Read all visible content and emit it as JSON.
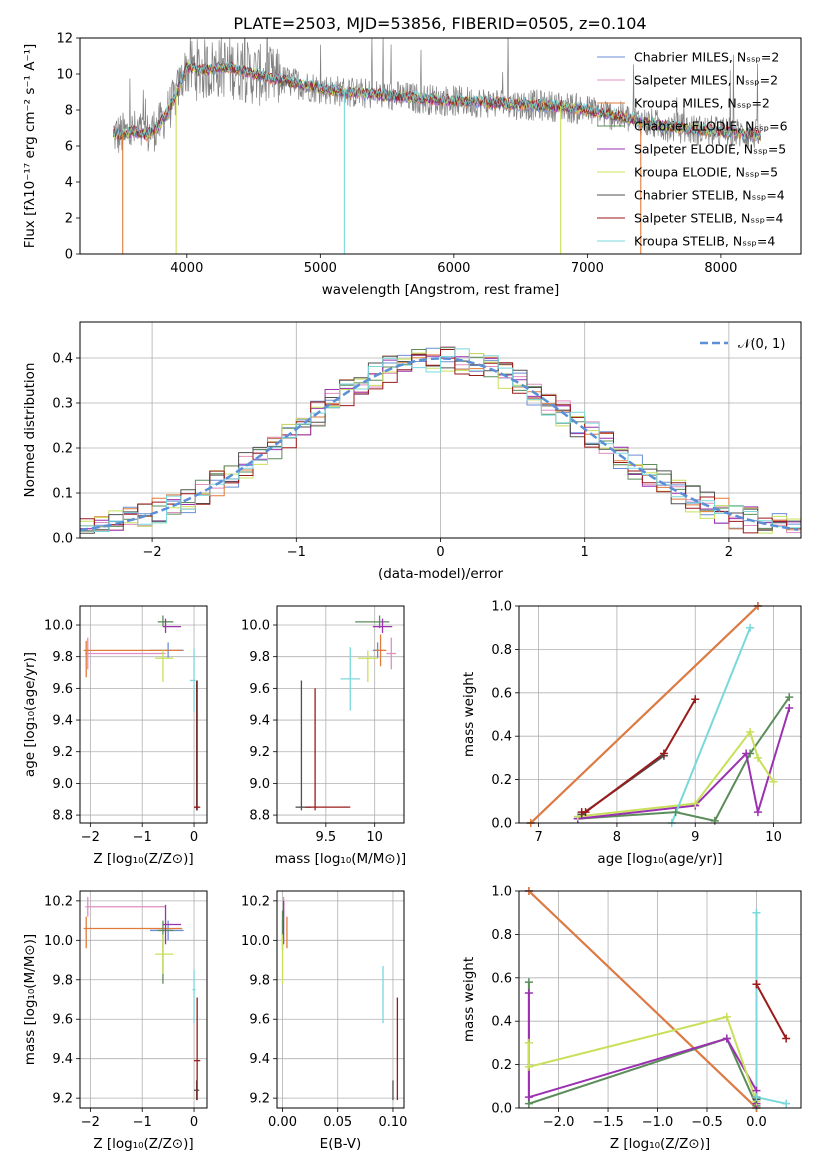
{
  "title": "PLATE=2503, MJD=53856, FIBERID=0505, z=0.104",
  "colors": {
    "chabrier_miles": "#6a8fd6",
    "salpeter_miles": "#e08fc0",
    "kroupa_miles": "#e07b39",
    "chabrier_elodie": "#5b8c5a",
    "salpeter_elodie": "#9b30b0",
    "kroupa_elodie": "#c8e05a",
    "chabrier_stelib": "#505050",
    "salpeter_stelib": "#9b1a1a",
    "kroupa_stelib": "#78d8dc",
    "gaussian": "#5b8fd6",
    "grid": "#b0b0b0"
  },
  "chart_data": [
    {
      "type": "line",
      "panel": "spectrum",
      "xlabel": "wavelength [Angstrom, rest frame]",
      "ylabel": "Flux [fλ10⁻¹⁷ erg cm⁻² s⁻¹ A⁻¹]",
      "xlim": [
        3200,
        8600
      ],
      "ylim": [
        0,
        12
      ],
      "xticks": [
        4000,
        5000,
        6000,
        7000,
        8000
      ],
      "yticks": [
        0,
        2,
        4,
        6,
        8,
        10,
        12
      ],
      "grid": false,
      "legend": "top-right",
      "legend_entries": [
        {
          "label": "Chabrier MILES, Nₛₛₚ=2",
          "color": "chabrier_miles"
        },
        {
          "label": "Salpeter MILES, Nₛₛₚ=2",
          "color": "salpeter_miles"
        },
        {
          "label": "Kroupa MILES, Nₛₛₚ=2",
          "color": "kroupa_miles"
        },
        {
          "label": "Chabrier ELODIE, Nₛₛₚ=6",
          "color": "chabrier_elodie"
        },
        {
          "label": "Salpeter ELODIE, Nₛₛₚ=5",
          "color": "salpeter_elodie"
        },
        {
          "label": "Kroupa ELODIE, Nₛₛₚ=5",
          "color": "kroupa_elodie"
        },
        {
          "label": "Chabrier STELIB, Nₛₛₚ=4",
          "color": "chabrier_stelib"
        },
        {
          "label": "Salpeter STELIB, Nₛₛₚ=4",
          "color": "salpeter_stelib"
        },
        {
          "label": "Kroupa STELIB, Nₛₛₚ=4",
          "color": "kroupa_stelib"
        }
      ],
      "model_continuum": {
        "x": [
          3450,
          3500,
          3600,
          3700,
          3800,
          3900,
          4000,
          4100,
          4300,
          4500,
          4800,
          5000,
          5200,
          5500,
          5800,
          6000,
          6300,
          6500,
          6800,
          7000,
          7200,
          7500,
          7800,
          8000,
          8300
        ],
        "y": [
          6.7,
          6.6,
          6.8,
          6.6,
          7.2,
          8.5,
          10.4,
          10.2,
          10.4,
          10.0,
          9.5,
          9.2,
          9.0,
          8.8,
          8.6,
          8.5,
          8.4,
          8.3,
          8.2,
          8.0,
          7.7,
          7.2,
          6.9,
          6.8,
          6.6
        ]
      },
      "data_dropouts": [
        {
          "x": 3520,
          "color": "kroupa_miles"
        },
        {
          "x": 3920,
          "color": "kroupa_elodie"
        },
        {
          "x": 5180,
          "color": "kroupa_stelib"
        },
        {
          "x": 6800,
          "color": "kroupa_elodie"
        },
        {
          "x": 7400,
          "color": "kroupa_miles"
        }
      ]
    },
    {
      "type": "line",
      "panel": "residual-histogram",
      "xlabel": "(data-model)/error",
      "ylabel": "Normed distribution",
      "xlim": [
        -2.5,
        2.5
      ],
      "ylim": [
        0,
        0.48
      ],
      "xticks": [
        -2,
        -1,
        0,
        1,
        2
      ],
      "yticks": [
        0.0,
        0.1,
        0.2,
        0.3,
        0.4
      ],
      "grid": true,
      "legend": "top-right",
      "legend_label": "𝒩(0, 1)",
      "gaussian": {
        "mean": 0,
        "sigma": 1
      },
      "bin_width": 0.1,
      "series_colors": [
        "chabrier_miles",
        "salpeter_miles",
        "kroupa_miles",
        "chabrier_elodie",
        "salpeter_elodie",
        "kroupa_elodie",
        "chabrier_stelib",
        "salpeter_stelib",
        "kroupa_stelib"
      ]
    },
    {
      "type": "scatter",
      "panel": "age-vs-Z",
      "xlabel": "Z [log₁₀(Z/Z⊙)]",
      "ylabel": "age  [log₁₀(age/yr)]",
      "xlim": [
        -2.2,
        0.25
      ],
      "ylim": [
        8.75,
        10.12
      ],
      "xticks": [
        -2,
        -1,
        0
      ],
      "yticks": [
        8.8,
        9.0,
        9.2,
        9.4,
        9.6,
        9.8,
        10.0
      ],
      "grid": true,
      "points": [
        {
          "color": "chabrier_miles",
          "x": -0.5,
          "y": 9.84,
          "xerr": [
            0.35,
            0.3
          ],
          "yerr": [
            0.05,
            0.05
          ]
        },
        {
          "color": "salpeter_miles",
          "x": -2.05,
          "y": 9.82,
          "xerr": [
            0.05,
            1.5
          ],
          "yerr": [
            0.1,
            0.1
          ]
        },
        {
          "color": "kroupa_miles",
          "x": -2.08,
          "y": 9.84,
          "xerr": [
            0.05,
            1.85
          ],
          "yerr": [
            0.17,
            0.06
          ]
        },
        {
          "color": "chabrier_elodie",
          "x": -0.6,
          "y": 10.02,
          "xerr": [
            0.1,
            0.2
          ],
          "yerr": [
            0.03,
            0.04
          ]
        },
        {
          "color": "salpeter_elodie",
          "x": -0.55,
          "y": 9.99,
          "xerr": [
            0.05,
            0.3
          ],
          "yerr": [
            0.04,
            0.05
          ]
        },
        {
          "color": "kroupa_elodie",
          "x": -0.6,
          "y": 9.79,
          "xerr": [
            0.15,
            0.2
          ],
          "yerr": [
            0.15,
            0.05
          ]
        },
        {
          "color": "chabrier_stelib",
          "x": 0.05,
          "y": 8.85,
          "xerr": [
            0.05,
            0.05
          ],
          "yerr": [
            0.02,
            0.8
          ]
        },
        {
          "color": "salpeter_stelib",
          "x": 0.06,
          "y": 8.85,
          "xerr": [
            0.06,
            0.06
          ],
          "yerr": [
            0.02,
            0.8
          ]
        },
        {
          "color": "kroupa_stelib",
          "x": 0.0,
          "y": 9.65,
          "xerr": [
            0.08,
            0.03
          ],
          "yerr": [
            0.2,
            0.2
          ]
        }
      ]
    },
    {
      "type": "scatter",
      "panel": "age-vs-mass",
      "xlabel": "mass [log₁₀(M/M⊙)]",
      "ylabel": "",
      "xlim": [
        9.0,
        10.3
      ],
      "ylim": [
        8.75,
        10.12
      ],
      "xticks": [
        9.5,
        10.0
      ],
      "yticks": [
        8.8,
        9.0,
        9.2,
        9.4,
        9.6,
        9.8,
        10.0
      ],
      "grid": true,
      "points": [
        {
          "color": "chabrier_miles",
          "x": 10.03,
          "y": 9.84,
          "xerr": [
            0.05,
            0.05
          ],
          "yerr": [
            0.05,
            0.05
          ]
        },
        {
          "color": "salpeter_miles",
          "x": 10.17,
          "y": 9.82,
          "xerr": [
            0.05,
            0.05
          ],
          "yerr": [
            0.1,
            0.1
          ]
        },
        {
          "color": "kroupa_miles",
          "x": 10.06,
          "y": 9.84,
          "xerr": [
            0.06,
            0.06
          ],
          "yerr": [
            0.1,
            0.1
          ]
        },
        {
          "color": "chabrier_elodie",
          "x": 10.05,
          "y": 10.02,
          "xerr": [
            0.25,
            0.1
          ],
          "yerr": [
            0.04,
            0.04
          ]
        },
        {
          "color": "salpeter_elodie",
          "x": 10.08,
          "y": 9.99,
          "xerr": [
            0.1,
            0.1
          ],
          "yerr": [
            0.04,
            0.05
          ]
        },
        {
          "color": "kroupa_elodie",
          "x": 9.93,
          "y": 9.79,
          "xerr": [
            0.1,
            0.1
          ],
          "yerr": [
            0.15,
            0.05
          ]
        },
        {
          "color": "chabrier_stelib",
          "x": 9.25,
          "y": 8.85,
          "xerr": [
            0.06,
            0.1
          ],
          "yerr": [
            0.02,
            0.8
          ]
        },
        {
          "color": "salpeter_stelib",
          "x": 9.39,
          "y": 8.85,
          "xerr": [
            0.1,
            0.36
          ],
          "yerr": [
            0.02,
            0.75
          ]
        },
        {
          "color": "kroupa_stelib",
          "x": 9.75,
          "y": 9.66,
          "xerr": [
            0.1,
            0.1
          ],
          "yerr": [
            0.2,
            0.2
          ]
        }
      ]
    },
    {
      "type": "line",
      "panel": "mass-weight-vs-age",
      "xlabel": "age  [log₁₀(age/yr)]",
      "ylabel": "mass weight",
      "xlim": [
        6.75,
        10.35
      ],
      "ylim": [
        0,
        1
      ],
      "xticks": [
        7,
        8,
        9,
        10
      ],
      "yticks": [
        0.0,
        0.2,
        0.4,
        0.6,
        0.8,
        1.0
      ],
      "grid": true,
      "series": [
        {
          "color": "chabrier_miles",
          "x": [
            6.9,
            9.8
          ],
          "y": [
            0.0,
            1.0
          ]
        },
        {
          "color": "salpeter_miles",
          "x": [
            6.9,
            9.8
          ],
          "y": [
            0.0,
            1.0
          ]
        },
        {
          "color": "kroupa_miles",
          "x": [
            6.9,
            9.8
          ],
          "y": [
            0.0,
            1.0
          ]
        },
        {
          "color": "chabrier_elodie",
          "x": [
            7.5,
            8.75,
            9.25,
            9.7,
            10.2
          ],
          "y": [
            0.02,
            0.05,
            0.01,
            0.32,
            0.58
          ]
        },
        {
          "color": "salpeter_elodie",
          "x": [
            7.5,
            9.0,
            9.65,
            9.8,
            10.2
          ],
          "y": [
            0.02,
            0.08,
            0.32,
            0.05,
            0.53
          ]
        },
        {
          "color": "kroupa_elodie",
          "x": [
            7.5,
            9.0,
            9.7,
            9.8,
            10.0
          ],
          "y": [
            0.03,
            0.09,
            0.42,
            0.3,
            0.19
          ]
        },
        {
          "color": "chabrier_stelib",
          "x": [
            7.55,
            8.6
          ],
          "y": [
            0.04,
            0.31
          ]
        },
        {
          "color": "salpeter_stelib",
          "x": [
            7.55,
            7.6,
            8.6,
            9.0
          ],
          "y": [
            0.05,
            0.05,
            0.32,
            0.57
          ]
        },
        {
          "color": "kroupa_stelib",
          "x": [
            8.7,
            9.7
          ],
          "y": [
            0.0,
            0.9
          ]
        }
      ]
    },
    {
      "type": "scatter",
      "panel": "mass-vs-Z",
      "xlabel": "Z [log₁₀(Z/Z⊙)]",
      "ylabel": "mass [log₁₀(M/M⊙)]",
      "xlim": [
        -2.2,
        0.25
      ],
      "ylim": [
        9.15,
        10.25
      ],
      "xticks": [
        -2,
        -1,
        0
      ],
      "yticks": [
        9.2,
        9.4,
        9.6,
        9.8,
        10.0,
        10.2
      ],
      "grid": true,
      "points": [
        {
          "color": "chabrier_miles",
          "x": -0.5,
          "y": 10.05,
          "xerr": [
            0.35,
            0.3
          ],
          "yerr": [
            0.05,
            0.05
          ]
        },
        {
          "color": "salpeter_miles",
          "x": -2.05,
          "y": 10.17,
          "xerr": [
            0.05,
            1.5
          ],
          "yerr": [
            0.05,
            0.05
          ]
        },
        {
          "color": "kroupa_miles",
          "x": -2.08,
          "y": 10.06,
          "xerr": [
            0.05,
            1.85
          ],
          "yerr": [
            0.1,
            0.06
          ]
        },
        {
          "color": "chabrier_elodie",
          "x": -0.6,
          "y": 10.05,
          "xerr": [
            0.1,
            0.2
          ],
          "yerr": [
            0.27,
            0.05
          ]
        },
        {
          "color": "salpeter_elodie",
          "x": -0.55,
          "y": 10.08,
          "xerr": [
            0.05,
            0.3
          ],
          "yerr": [
            0.1,
            0.1
          ]
        },
        {
          "color": "kroupa_elodie",
          "x": -0.6,
          "y": 9.93,
          "xerr": [
            0.15,
            0.2
          ],
          "yerr": [
            0.1,
            0.1
          ]
        },
        {
          "color": "chabrier_stelib",
          "x": 0.05,
          "y": 9.24,
          "xerr": [
            0.05,
            0.05
          ],
          "yerr": [
            0.05,
            0.05
          ]
        },
        {
          "color": "salpeter_stelib",
          "x": 0.06,
          "y": 9.39,
          "xerr": [
            0.06,
            0.06
          ],
          "yerr": [
            0.2,
            0.32
          ]
        },
        {
          "color": "kroupa_stelib",
          "x": 0.0,
          "y": 9.75,
          "xerr": [
            0.03,
            0.03
          ],
          "yerr": [
            0.17,
            0.1
          ]
        }
      ]
    },
    {
      "type": "scatter",
      "panel": "mass-vs-ebv",
      "xlabel": "E(B-V)",
      "ylabel": "",
      "xlim": [
        -0.005,
        0.11
      ],
      "ylim": [
        9.15,
        10.25
      ],
      "xticks": [
        0.0,
        0.05,
        0.1
      ],
      "xtick_labels": [
        "0.00",
        "0.05",
        "0.10"
      ],
      "yticks": [
        9.2,
        9.4,
        9.6,
        9.8,
        10.0,
        10.2
      ],
      "grid": true,
      "points": [
        {
          "color": "chabrier_miles",
          "x": 0.0,
          "y": 10.05,
          "yerr": [
            0.05,
            0.05
          ]
        },
        {
          "color": "salpeter_miles",
          "x": 0.001,
          "y": 10.17,
          "yerr": [
            0.05,
            0.05
          ]
        },
        {
          "color": "kroupa_miles",
          "x": 0.004,
          "y": 10.06,
          "yerr": [
            0.1,
            0.06
          ]
        },
        {
          "color": "chabrier_elodie",
          "x": 0.0,
          "y": 10.05,
          "yerr": [
            0.1,
            0.1
          ]
        },
        {
          "color": "salpeter_elodie",
          "x": 0.001,
          "y": 10.08,
          "yerr": [
            0.1,
            0.12
          ]
        },
        {
          "color": "kroupa_elodie",
          "x": 0.0,
          "y": 9.93,
          "yerr": [
            0.15,
            0.1
          ]
        },
        {
          "color": "chabrier_stelib",
          "x": 0.1,
          "y": 9.24,
          "yerr": [
            0.05,
            0.05
          ]
        },
        {
          "color": "salpeter_stelib",
          "x": 0.104,
          "y": 9.39,
          "yerr": [
            0.2,
            0.32
          ]
        },
        {
          "color": "kroupa_stelib",
          "x": 0.091,
          "y": 9.75,
          "yerr": [
            0.17,
            0.12
          ]
        }
      ]
    },
    {
      "type": "line",
      "panel": "mass-weight-vs-Z",
      "xlabel": "Z [log₁₀(Z/Z⊙)]",
      "ylabel": "mass weight",
      "xlim": [
        -2.4,
        0.45
      ],
      "ylim": [
        0,
        1
      ],
      "xticks": [
        -2.0,
        -1.5,
        -1.0,
        -0.5,
        0.0
      ],
      "xtick_labels": [
        "−2.0",
        "−1.5",
        "−1.0",
        "−0.5",
        "0.0"
      ],
      "yticks": [
        0.0,
        0.2,
        0.4,
        0.6,
        0.8,
        1.0
      ],
      "grid": true,
      "series": [
        {
          "color": "chabrier_miles",
          "x": [
            -2.3,
            0.0
          ],
          "y": [
            1.0,
            0.0
          ]
        },
        {
          "color": "salpeter_miles",
          "x": [
            -2.3,
            0.0
          ],
          "y": [
            1.0,
            0.0
          ]
        },
        {
          "color": "kroupa_miles",
          "x": [
            -2.3,
            0.0
          ],
          "y": [
            1.0,
            0.0
          ]
        },
        {
          "color": "chabrier_elodie",
          "x": [
            -2.3,
            -2.3,
            -0.3,
            0.0,
            0.0
          ],
          "y": [
            0.58,
            0.02,
            0.32,
            0.01,
            0.05
          ]
        },
        {
          "color": "salpeter_elodie",
          "x": [
            -2.3,
            -2.3,
            -0.3,
            0.0,
            0.0
          ],
          "y": [
            0.53,
            0.05,
            0.32,
            0.08,
            0.02
          ]
        },
        {
          "color": "kroupa_elodie",
          "x": [
            -2.3,
            -2.3,
            -0.3,
            0.0
          ],
          "y": [
            0.3,
            0.19,
            0.42,
            0.03
          ]
        },
        {
          "color": "chabrier_stelib",
          "x": [
            0.0,
            0.0
          ],
          "y": [
            0.04,
            0.57
          ]
        },
        {
          "color": "salpeter_stelib",
          "x": [
            0.0,
            0.0,
            0.3
          ],
          "y": [
            0.05,
            0.57,
            0.32
          ]
        },
        {
          "color": "kroupa_stelib",
          "x": [
            0.0,
            0.0,
            0.3
          ],
          "y": [
            0.9,
            0.05,
            0.02
          ]
        }
      ]
    }
  ]
}
